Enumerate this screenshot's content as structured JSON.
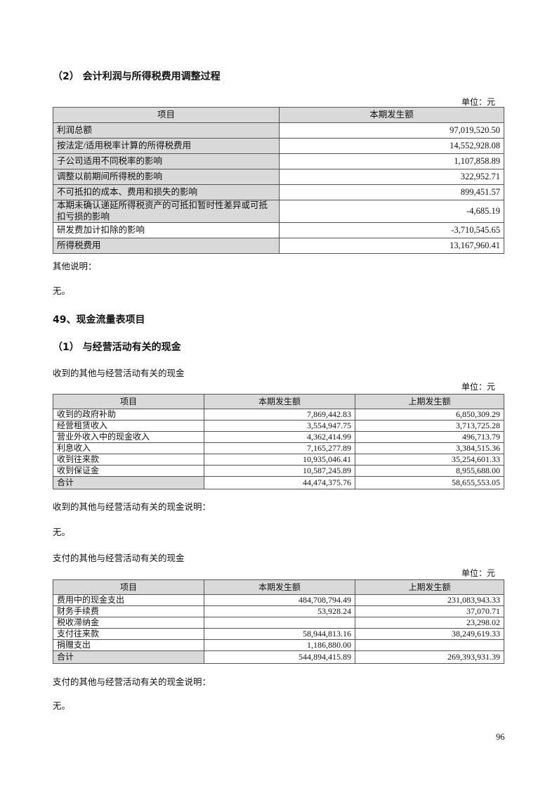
{
  "section2": {
    "heading": "（2） 会计利润与所得税费用调整过程",
    "unit": "单位：元",
    "headers": [
      "项目",
      "本期发生额"
    ],
    "rows": [
      {
        "item": "利润总额",
        "current": "97,019,520.50",
        "shaded": true
      },
      {
        "item": "按法定/适用税率计算的所得税费用",
        "current": "14,552,928.08",
        "shaded": true
      },
      {
        "item": "子公司适用不同税率的影响",
        "current": "1,107,858.89",
        "shaded": true
      },
      {
        "item": "调整以前期间所得税的影响",
        "current": "322,952.71",
        "shaded": true
      },
      {
        "item": "不可抵扣的成本、费用和损失的影响",
        "current": "899,451.57",
        "shaded": true
      },
      {
        "item": "本期未确认递延所得税资产的可抵扣暂时性差异或可抵扣亏损的影响",
        "current": "-4,685.19",
        "shaded": true
      },
      {
        "item": "研发费加计扣除的影响",
        "current": "-3,710,545.65",
        "shaded": false
      },
      {
        "item": "所得税费用",
        "current": "13,167,960.41",
        "shaded": true
      }
    ],
    "note_label": "其他说明：",
    "note": "无。"
  },
  "section49": {
    "heading": "49、现金流量表项目",
    "sub1_heading": "（1） 与经营活动有关的现金",
    "received": {
      "caption": "收到的其他与经营活动有关的现金",
      "unit": "单位：元",
      "headers": [
        "项目",
        "本期发生额",
        "上期发生额"
      ],
      "rows": [
        {
          "item": "收到的政府补助",
          "current": "7,869,442.83",
          "prior": "6,850,309.29"
        },
        {
          "item": "经营租赁收入",
          "current": "3,554,947.75",
          "prior": "3,713,725.28"
        },
        {
          "item": "营业外收入中的现金收入",
          "current": "4,362,414.99",
          "prior": "496,713.79"
        },
        {
          "item": "利息收入",
          "current": "7,165,277.89",
          "prior": "3,384,515.36"
        },
        {
          "item": "收到往来款",
          "current": "10,935,046.41",
          "prior": "35,254,601.33"
        },
        {
          "item": "收到保证金",
          "current": "10,587,245.89",
          "prior": "8,955,688.00"
        }
      ],
      "total": {
        "item": "合计",
        "current": "44,474,375.76",
        "prior": "58,655,553.05"
      },
      "note_label": "收到的其他与经营活动有关的现金说明：",
      "note": "无。"
    },
    "paid": {
      "caption": "支付的其他与经营活动有关的现金",
      "unit": "单位：元",
      "headers": [
        "项目",
        "本期发生额",
        "上期发生额"
      ],
      "rows": [
        {
          "item": "费用中的现金支出",
          "current": "484,708,794.49",
          "prior": "231,083,943.33"
        },
        {
          "item": "财务手续费",
          "current": "53,928.24",
          "prior": "37,070.71"
        },
        {
          "item": "税收滞纳金",
          "current": "",
          "prior": "23,298.02"
        },
        {
          "item": "支付往来款",
          "current": "58,944,813.16",
          "prior": "38,249,619.33"
        },
        {
          "item": "捐赠支出",
          "current": "1,186,880.00",
          "prior": ""
        }
      ],
      "total": {
        "item": "合计",
        "current": "544,894,415.89",
        "prior": "269,393,931.39"
      },
      "note_label": "支付的其他与经营活动有关的现金说明：",
      "note": "无。"
    }
  },
  "page_number": "96"
}
